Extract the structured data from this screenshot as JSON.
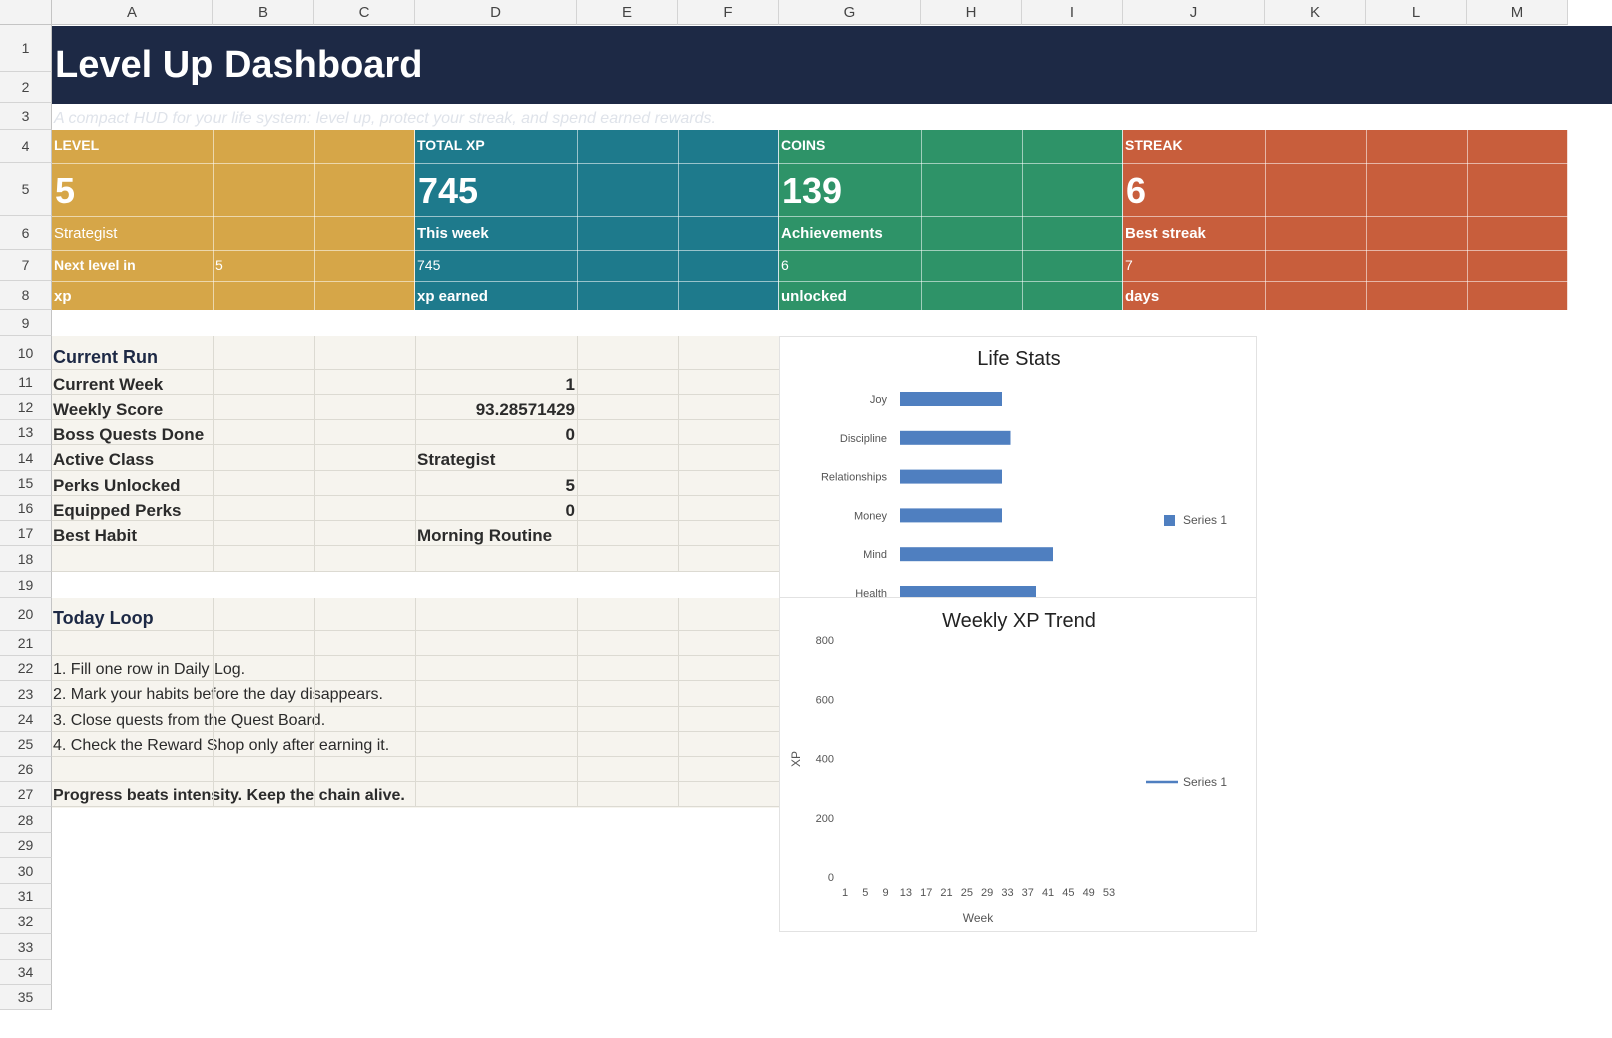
{
  "columns": [
    "A",
    "B",
    "C",
    "D",
    "E",
    "F",
    "G",
    "H",
    "I",
    "J",
    "K",
    "L",
    "M"
  ],
  "rows": [
    "1",
    "2",
    "3",
    "4",
    "5",
    "6",
    "7",
    "8",
    "9",
    "10",
    "11",
    "12",
    "13",
    "14",
    "15",
    "16",
    "17",
    "18",
    "19",
    "20",
    "21",
    "22",
    "23",
    "24",
    "25",
    "26",
    "27",
    "28",
    "29",
    "30",
    "31",
    "32",
    "33",
    "34",
    "35"
  ],
  "header": {
    "title": "Level Up Dashboard",
    "subtitle": "A compact HUD for your life system: level up, protect your streak, and spend earned rewards."
  },
  "kpis": [
    {
      "label": "LEVEL",
      "value": "5",
      "sub": "Strategist",
      "line1_label": "Next level in",
      "line1_value": "5",
      "line2": "xp",
      "color": "#d6a648"
    },
    {
      "label": "TOTAL XP",
      "value": "745",
      "sub": "This week",
      "line1_label": "745",
      "line1_value": "",
      "line2": "xp earned",
      "color": "#1e7a8c"
    },
    {
      "label": "COINS",
      "value": "139",
      "sub": "Achievements",
      "line1_label": "6",
      "line1_value": "",
      "line2": "unlocked",
      "color": "#2e9368"
    },
    {
      "label": "STREAK",
      "value": "6",
      "sub": "Best streak",
      "line1_label": "7",
      "line1_value": "",
      "line2": "days",
      "color": "#c85e3c"
    }
  ],
  "current_run": {
    "heading": "Current Run",
    "rows": [
      {
        "label": "Current Week",
        "value": "1",
        "align": "right"
      },
      {
        "label": "Weekly Score",
        "value": "93.28571429",
        "align": "right"
      },
      {
        "label": "Boss Quests Done",
        "value": "0",
        "align": "right"
      },
      {
        "label": "Active Class",
        "value": "Strategist",
        "align": "left"
      },
      {
        "label": "Perks Unlocked",
        "value": "5",
        "align": "right"
      },
      {
        "label": "Equipped Perks",
        "value": "0",
        "align": "right"
      },
      {
        "label": "Best Habit",
        "value": "Morning Routine",
        "align": "left"
      }
    ]
  },
  "today_loop": {
    "heading": "Today Loop",
    "steps": [
      "1. Fill one row in Daily Log.",
      "2. Mark your habits before the day disappears.",
      "3. Close quests from the Quest Board.",
      "4. Check the Reward Shop only after earning it."
    ],
    "motto": "Progress beats intensity. Keep the chain alive."
  },
  "chart_data": [
    {
      "type": "bar",
      "orientation": "horizontal",
      "title": "Life Stats",
      "categories": [
        "Joy",
        "Discipline",
        "Relationships",
        "Money",
        "Mind",
        "Health"
      ],
      "series": [
        {
          "name": "Series 1",
          "values": [
            6,
            6.5,
            6,
            6,
            9,
            8
          ],
          "color": "#4f7fc0"
        }
      ],
      "xlim": [
        0,
        20
      ],
      "legend": "right"
    },
    {
      "type": "line",
      "title": "Weekly XP Trend",
      "xlabel": "Week",
      "ylabel": "XP",
      "x_ticks": [
        "1",
        "5",
        "9",
        "13",
        "17",
        "21",
        "25",
        "29",
        "33",
        "37",
        "41",
        "45",
        "49",
        "53"
      ],
      "y_ticks": [
        "0",
        "200",
        "400",
        "600",
        "800"
      ],
      "ylim": [
        0,
        800
      ],
      "series": [
        {
          "name": "Series 1",
          "values": [],
          "color": "#4f7fc0"
        }
      ],
      "legend": "right"
    }
  ]
}
